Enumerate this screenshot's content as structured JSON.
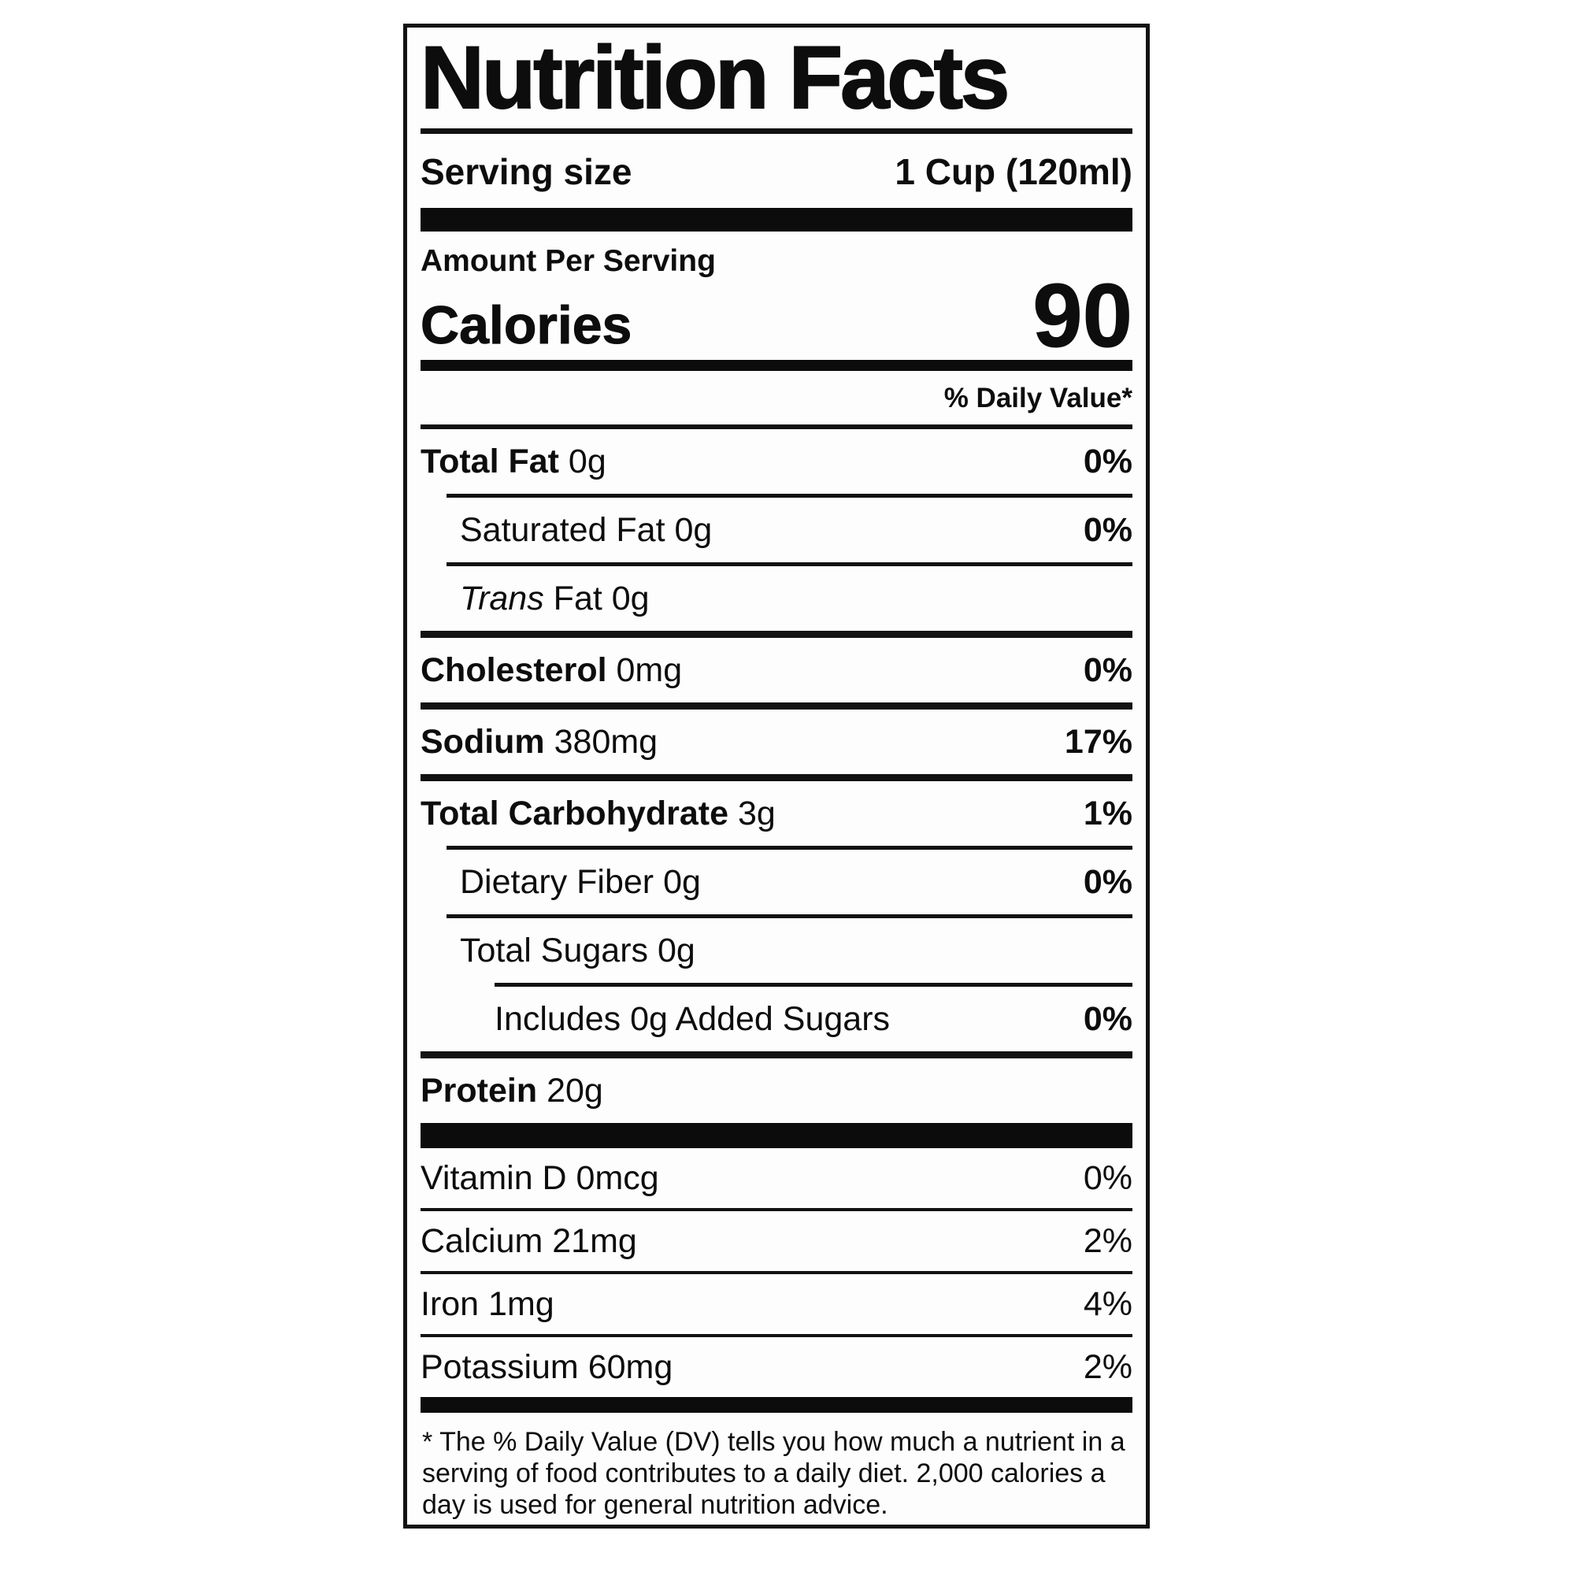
{
  "label": {
    "title": "Nutrition Facts",
    "serving": {
      "label": "Serving size",
      "value": "1 Cup (120ml)"
    },
    "amount_per_serving": "Amount Per Serving",
    "calories": {
      "label": "Calories",
      "value": "90"
    },
    "daily_value_header": "% Daily Value*",
    "nutrients": [
      {
        "bold": "Total Fat",
        "it": "",
        "reg": " 0g",
        "dv": "0%"
      },
      {
        "bold": "",
        "it": "",
        "reg": "Saturated Fat 0g",
        "dv": "0%"
      },
      {
        "bold": "",
        "it": "Trans",
        "reg": " Fat 0g",
        "dv": ""
      },
      {
        "bold": "Cholesterol",
        "it": "",
        "reg": " 0mg",
        "dv": "0%"
      },
      {
        "bold": "Sodium",
        "it": "",
        "reg": " 380mg",
        "dv": "17%"
      },
      {
        "bold": "Total Carbohydrate",
        "it": "",
        "reg": " 3g",
        "dv": "1%"
      },
      {
        "bold": "",
        "it": "",
        "reg": "Dietary Fiber 0g",
        "dv": "0%"
      },
      {
        "bold": "",
        "it": "",
        "reg": "Total Sugars 0g",
        "dv": ""
      },
      {
        "bold": "",
        "it": "",
        "reg": "Includes 0g Added Sugars",
        "dv": "0%"
      },
      {
        "bold": "Protein",
        "it": "",
        "reg": " 20g",
        "dv": ""
      }
    ],
    "vitamins": [
      {
        "name": "Vitamin D 0mcg",
        "dv": "0%"
      },
      {
        "name": "Calcium 21mg",
        "dv": "2%"
      },
      {
        "name": "Iron 1mg",
        "dv": "4%"
      },
      {
        "name": "Potassium 60mg",
        "dv": "2%"
      }
    ],
    "footnote": "* The % Daily Value (DV) tells you how much a nutrient in a serving of food contributes to a daily diet. 2,000 calories a day is used for general nutrition advice."
  },
  "colors": {
    "text": "#0d0d0d",
    "background": "#ffffff",
    "rule": "#121212"
  }
}
